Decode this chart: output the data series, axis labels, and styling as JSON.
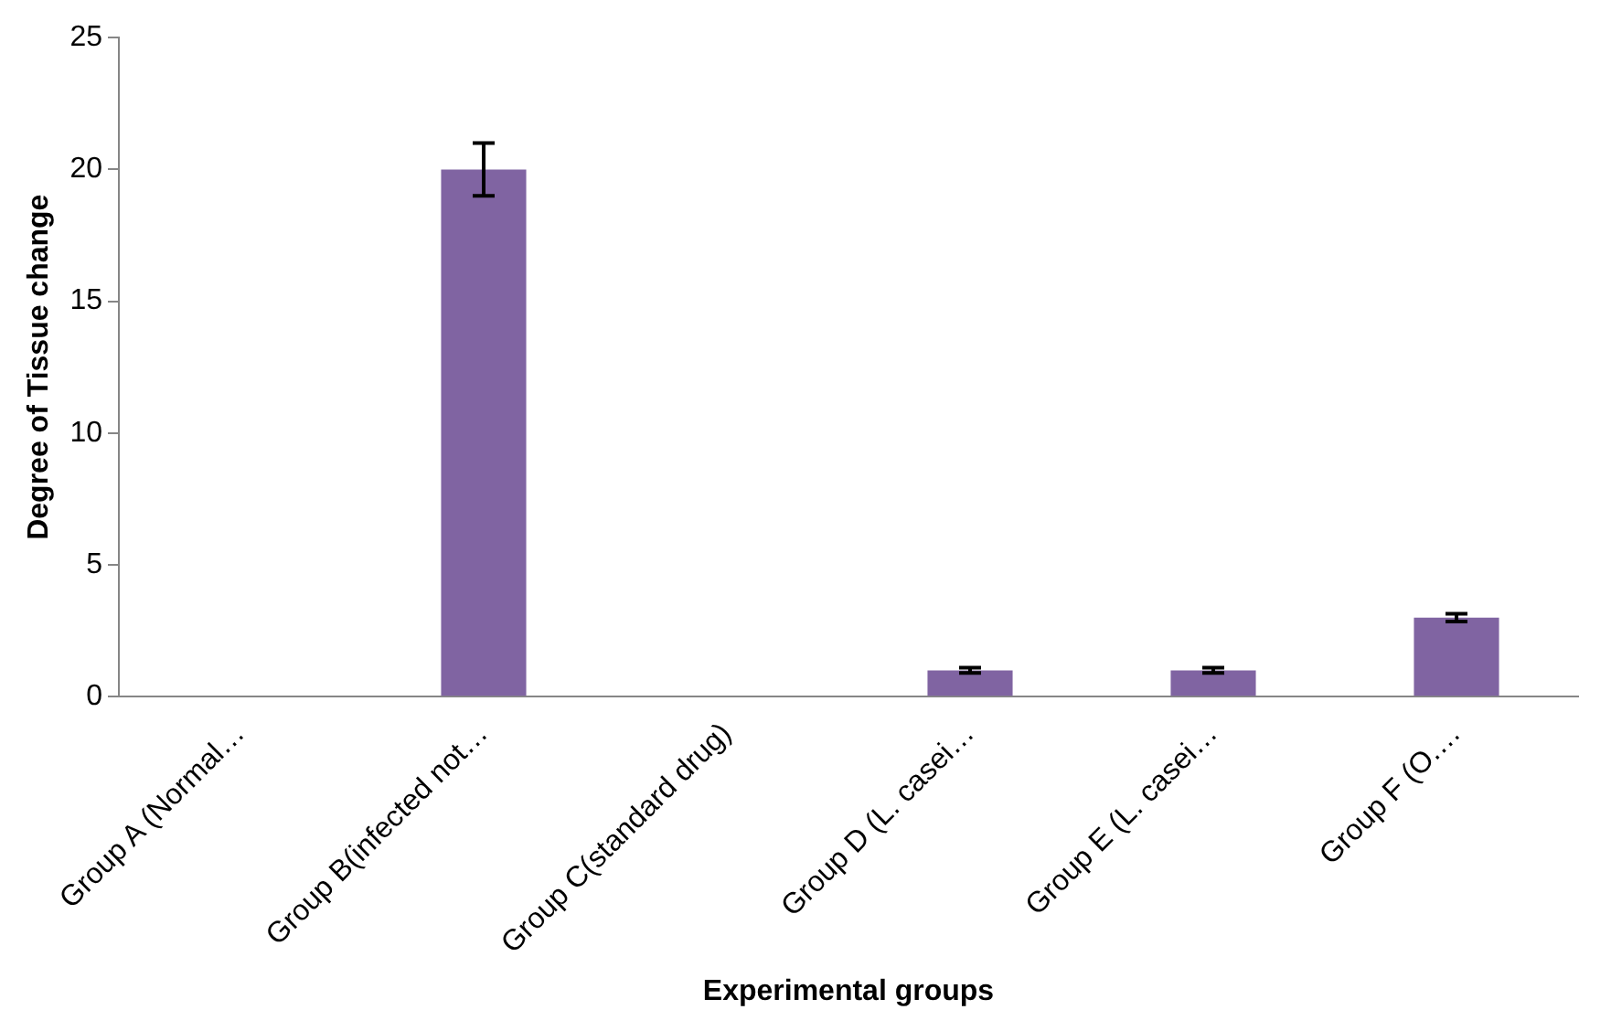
{
  "chart_data": {
    "type": "bar",
    "xlabel": "Experimental groups",
    "ylabel": "Degree of Tissue change",
    "categories": [
      "Group A (Normal…",
      "Group B(infected not…",
      "Group C(standard drug)",
      "Group D (L. casei…",
      "Group E (L. casei…",
      "Group F (O.…"
    ],
    "values": [
      0,
      20,
      0,
      1,
      1,
      3
    ],
    "errors": [
      null,
      1,
      null,
      0.1,
      0.1,
      0.15
    ],
    "color": "#8064a2",
    "ylim": [
      0,
      25
    ],
    "yticks": [
      0,
      5,
      10,
      15,
      20,
      25
    ],
    "grid": false,
    "legend": false
  }
}
